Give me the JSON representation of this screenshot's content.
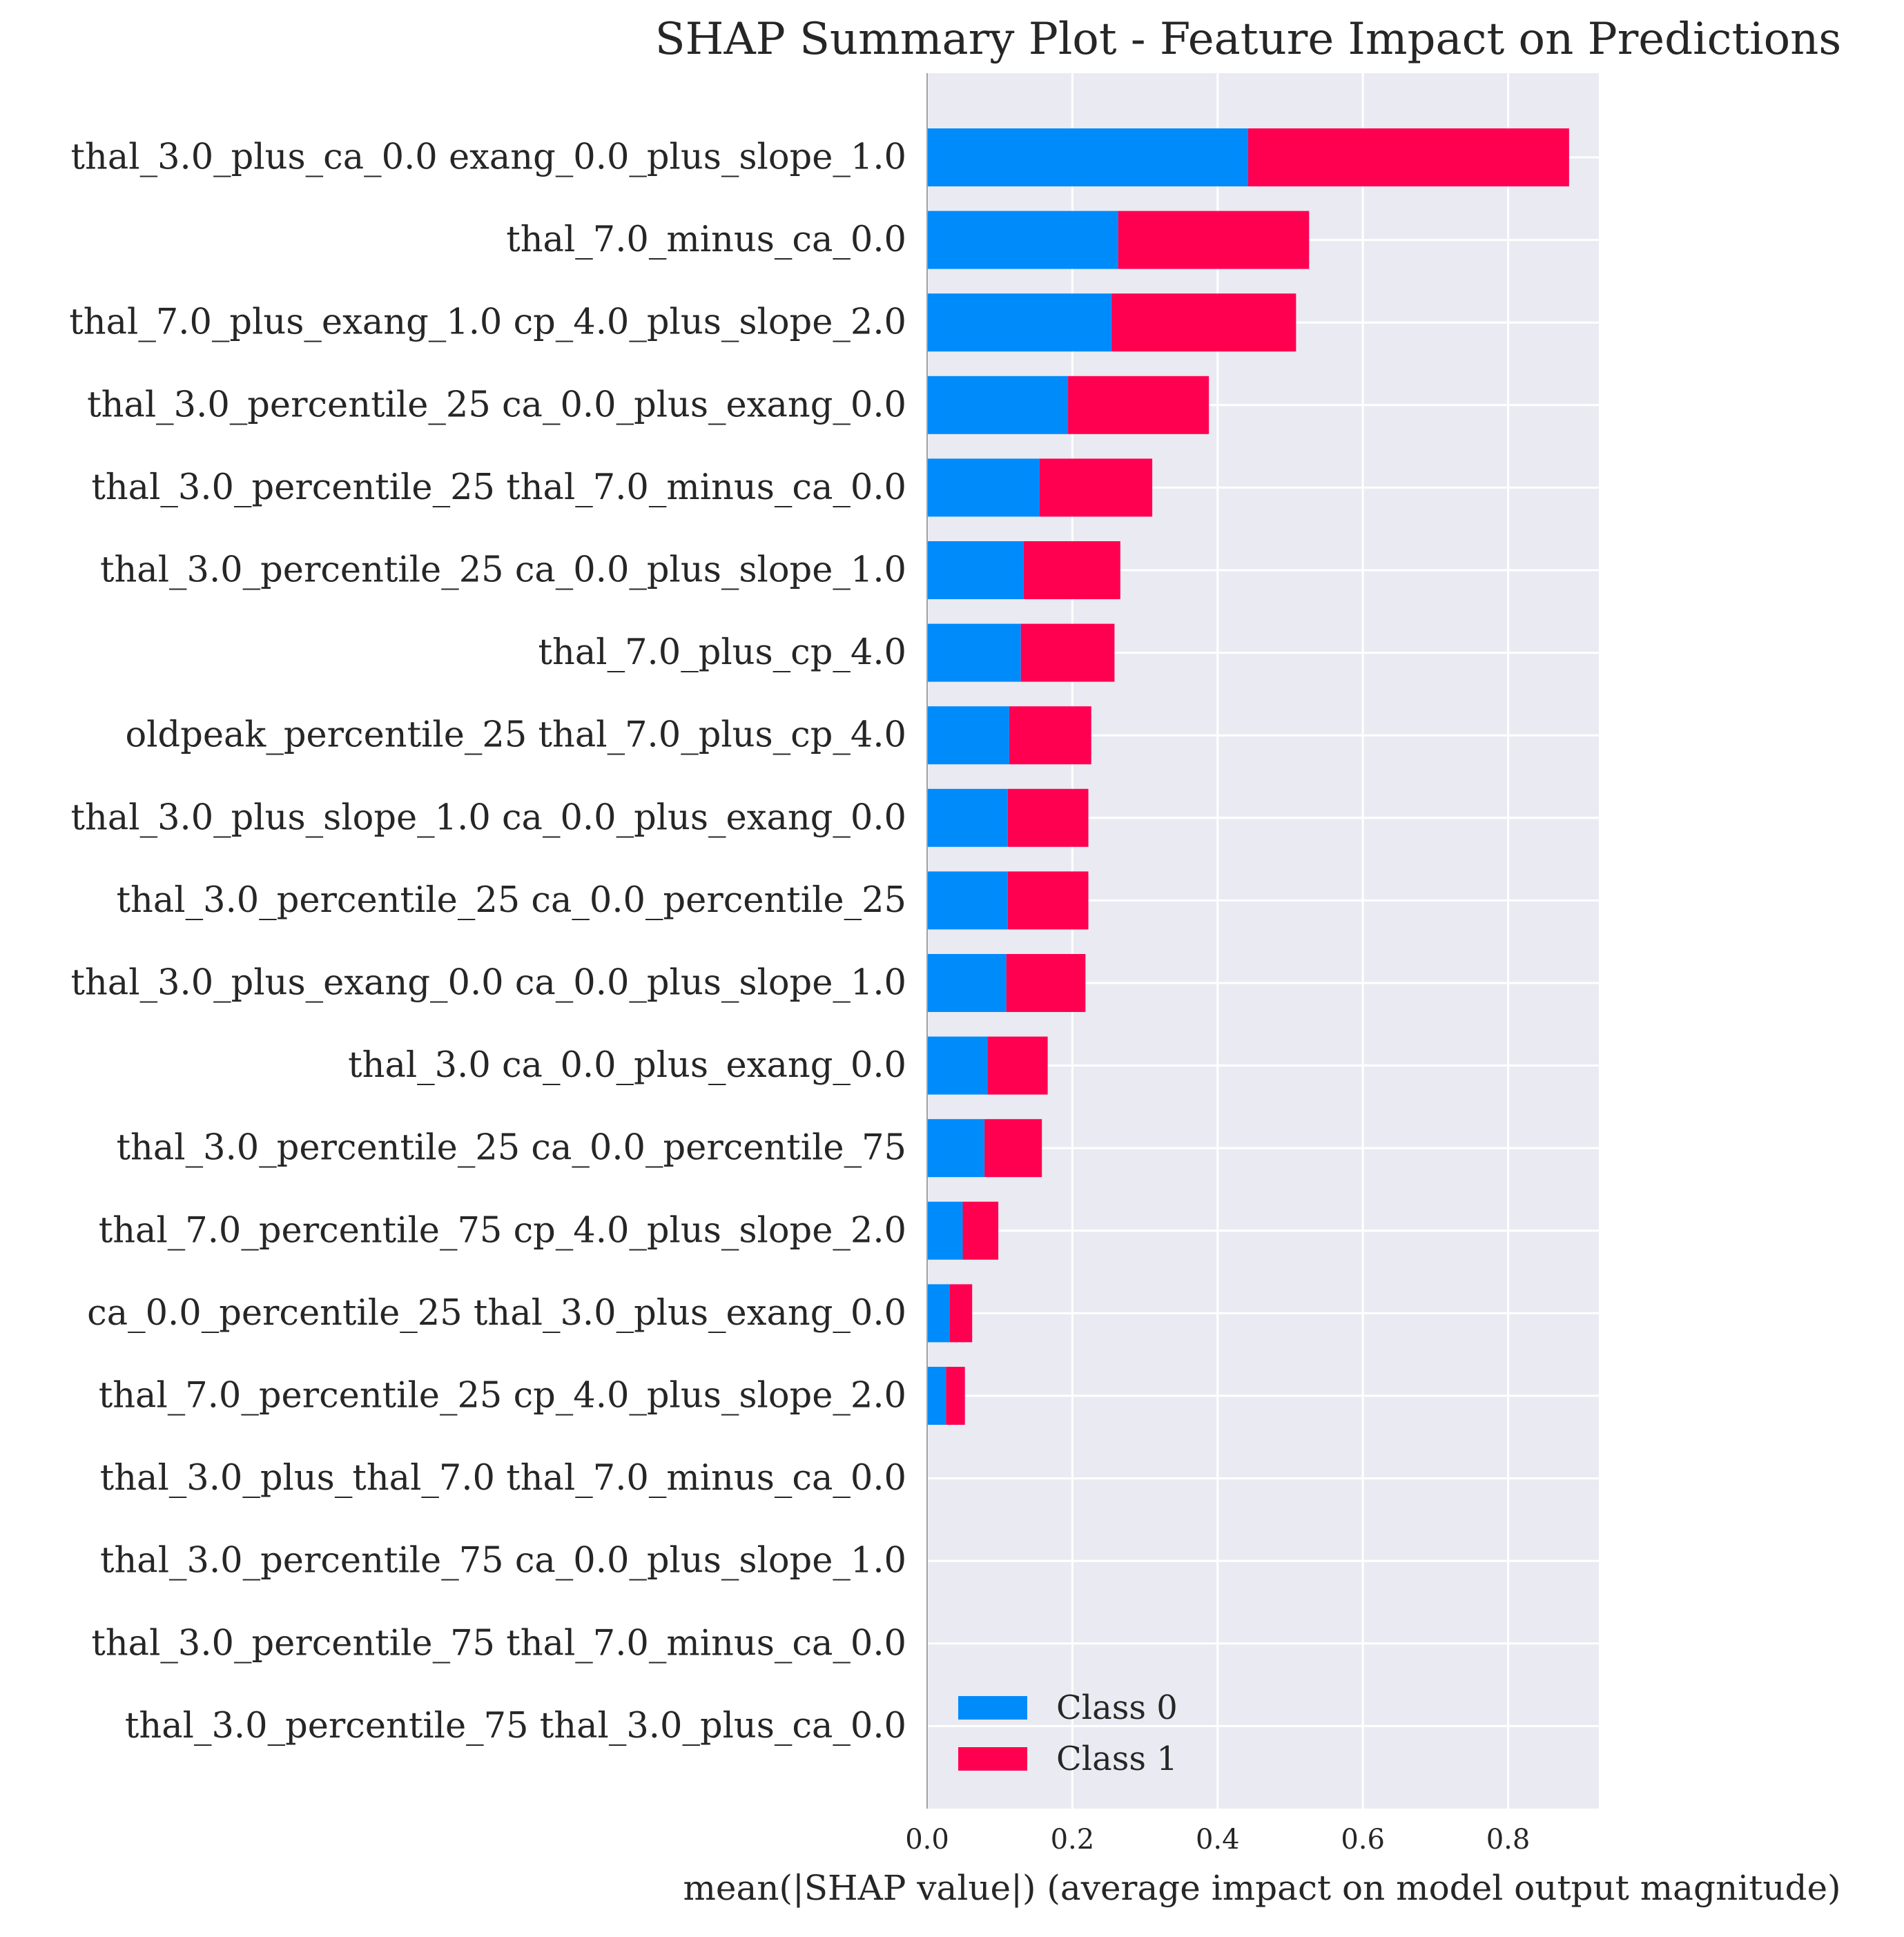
{
  "chart_data": {
    "type": "bar",
    "stacked": true,
    "orientation": "horizontal",
    "title": "SHAP Summary Plot - Feature Impact on Predictions",
    "xlabel": "mean(|SHAP value|) (average impact on model output magnitude)",
    "ylabel": "",
    "xlim": [
      0,
      0.925
    ],
    "xticks": [
      0.0,
      0.2,
      0.4,
      0.6,
      0.8
    ],
    "xtick_labels": [
      "0.0",
      "0.2",
      "0.4",
      "0.6",
      "0.8"
    ],
    "grid": true,
    "legend_position": "lower-left",
    "categories": [
      "thal_3.0_plus_ca_0.0 exang_0.0_plus_slope_1.0",
      "thal_7.0_minus_ca_0.0",
      "thal_7.0_plus_exang_1.0 cp_4.0_plus_slope_2.0",
      "thal_3.0_percentile_25 ca_0.0_plus_exang_0.0",
      "thal_3.0_percentile_25 thal_7.0_minus_ca_0.0",
      "thal_3.0_percentile_25 ca_0.0_plus_slope_1.0",
      "thal_7.0_plus_cp_4.0",
      "oldpeak_percentile_25 thal_7.0_plus_cp_4.0",
      "thal_3.0_plus_slope_1.0 ca_0.0_plus_exang_0.0",
      "thal_3.0_percentile_25 ca_0.0_percentile_25",
      "thal_3.0_plus_exang_0.0 ca_0.0_plus_slope_1.0",
      "thal_3.0 ca_0.0_plus_exang_0.0",
      "thal_3.0_percentile_25 ca_0.0_percentile_75",
      "thal_7.0_percentile_75 cp_4.0_plus_slope_2.0",
      "ca_0.0_percentile_25 thal_3.0_plus_exang_0.0",
      "thal_7.0_percentile_25 cp_4.0_plus_slope_2.0",
      "thal_3.0_plus_thal_7.0 thal_7.0_minus_ca_0.0",
      "thal_3.0_percentile_75 ca_0.0_plus_slope_1.0",
      "thal_3.0_percentile_75 thal_7.0_minus_ca_0.0",
      "thal_3.0_percentile_75 thal_3.0_plus_ca_0.0"
    ],
    "series": [
      {
        "name": "Class 0",
        "color": "#008bfb",
        "values": [
          0.442,
          0.263,
          0.254,
          0.194,
          0.155,
          0.133,
          0.129,
          0.113,
          0.111,
          0.111,
          0.109,
          0.083,
          0.079,
          0.049,
          0.031,
          0.026,
          0.0,
          0.0,
          0.0,
          0.0
        ]
      },
      {
        "name": "Class 1",
        "color": "#ff0051",
        "values": [
          0.442,
          0.263,
          0.254,
          0.194,
          0.155,
          0.133,
          0.129,
          0.113,
          0.111,
          0.111,
          0.109,
          0.083,
          0.079,
          0.049,
          0.031,
          0.026,
          0.0,
          0.0,
          0.0,
          0.0
        ]
      }
    ]
  },
  "colors": {
    "plot_background": "#eaeaf2",
    "grid": "#ffffff",
    "axis_line": "#a0a0a0",
    "text": "#262626"
  }
}
